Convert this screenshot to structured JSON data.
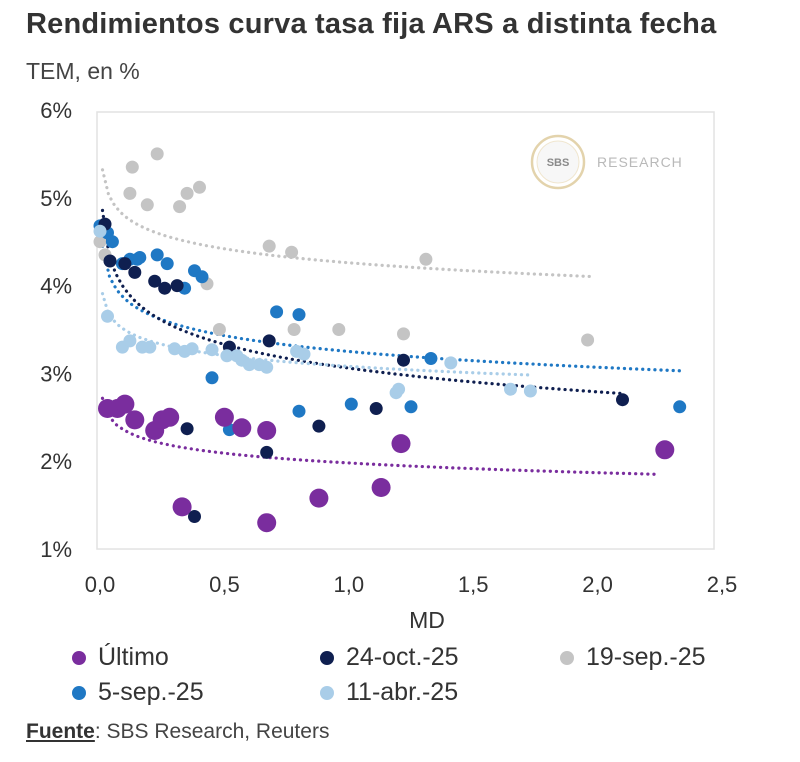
{
  "header": {
    "title": "Rendimientos curva tasa fija ARS a distinta fecha",
    "subtitle": "TEM, en %"
  },
  "watermark": {
    "logo_text": "SBS",
    "brand_text": "RESEARCH"
  },
  "source": {
    "label": "Fuente",
    "text": ": SBS Research, Reuters"
  },
  "chart_data": {
    "type": "scatter",
    "title": "Rendimientos curva tasa fija ARS a distinta fecha",
    "subtitle": "TEM, en %",
    "xlabel": "MD",
    "ylabel": "",
    "xlim": [
      0,
      2.5
    ],
    "ylim": [
      1,
      6
    ],
    "x_ticks": [
      0,
      0.5,
      1.0,
      1.5,
      2.0,
      2.5
    ],
    "x_tick_labels": [
      "0,0",
      "0,5",
      "1,0",
      "1,5",
      "2,0",
      "2,5"
    ],
    "y_ticks": [
      1,
      2,
      3,
      4,
      5,
      6
    ],
    "y_tick_labels": [
      "1%",
      "2%",
      "3%",
      "4%",
      "5%",
      "6%"
    ],
    "legend_position": "bottom",
    "series": [
      {
        "name": "19-sep.-25",
        "color": "#c4c4c4",
        "points": [
          [
            0.0,
            4.5
          ],
          [
            0.02,
            4.35
          ],
          [
            0.13,
            5.35
          ],
          [
            0.12,
            5.05
          ],
          [
            0.19,
            4.92
          ],
          [
            0.23,
            5.5
          ],
          [
            0.32,
            4.9
          ],
          [
            0.35,
            5.05
          ],
          [
            0.4,
            5.12
          ],
          [
            0.43,
            4.02
          ],
          [
            0.48,
            3.5
          ],
          [
            0.68,
            4.45
          ],
          [
            0.77,
            4.38
          ],
          [
            0.78,
            3.5
          ],
          [
            0.96,
            3.5
          ],
          [
            1.22,
            3.45
          ],
          [
            1.31,
            4.3
          ],
          [
            1.96,
            3.38
          ]
        ],
        "trend": {
          "a": 4.26,
          "b": 0.23,
          "x0": 0.01,
          "x1": 1.97
        }
      },
      {
        "name": "5-sep.-25",
        "color": "#1f78c4",
        "points": [
          [
            0.0,
            4.68
          ],
          [
            0.03,
            4.6
          ],
          [
            0.05,
            4.5
          ],
          [
            0.09,
            4.25
          ],
          [
            0.12,
            4.3
          ],
          [
            0.15,
            4.3
          ],
          [
            0.16,
            4.32
          ],
          [
            0.23,
            4.35
          ],
          [
            0.27,
            4.25
          ],
          [
            0.34,
            3.97
          ],
          [
            0.38,
            4.17
          ],
          [
            0.41,
            4.1
          ],
          [
            0.45,
            2.95
          ],
          [
            0.52,
            2.36
          ],
          [
            0.71,
            3.7
          ],
          [
            0.8,
            3.67
          ],
          [
            0.8,
            2.57
          ],
          [
            1.01,
            2.65
          ],
          [
            1.25,
            2.62
          ],
          [
            1.33,
            3.17
          ],
          [
            2.33,
            2.62
          ]
        ],
        "trend": {
          "a": 3.25,
          "b": 0.26,
          "x0": 0.01,
          "x1": 2.33
        }
      },
      {
        "name": "24-oct.-25",
        "color": "#0f1f50",
        "points": [
          [
            0.02,
            4.7
          ],
          [
            0.04,
            4.28
          ],
          [
            0.1,
            4.25
          ],
          [
            0.14,
            4.15
          ],
          [
            0.22,
            4.05
          ],
          [
            0.26,
            3.97
          ],
          [
            0.31,
            4.0
          ],
          [
            0.35,
            2.37
          ],
          [
            0.38,
            1.37
          ],
          [
            0.52,
            3.3
          ],
          [
            0.67,
            2.1
          ],
          [
            0.68,
            3.37
          ],
          [
            0.88,
            2.4
          ],
          [
            1.11,
            2.6
          ],
          [
            1.22,
            3.15
          ],
          [
            2.1,
            2.7
          ]
        ],
        "trend": {
          "a": 3.06,
          "b": 0.39,
          "x0": 0.01,
          "x1": 2.1
        }
      },
      {
        "name": "11-abr.-25",
        "color": "#a9cde8",
        "points": [
          [
            0.0,
            4.62
          ],
          [
            0.03,
            3.65
          ],
          [
            0.09,
            3.3
          ],
          [
            0.12,
            3.37
          ],
          [
            0.17,
            3.3
          ],
          [
            0.2,
            3.3
          ],
          [
            0.3,
            3.28
          ],
          [
            0.34,
            3.25
          ],
          [
            0.37,
            3.28
          ],
          [
            0.45,
            3.27
          ],
          [
            0.51,
            3.2
          ],
          [
            0.55,
            3.2
          ],
          [
            0.57,
            3.15
          ],
          [
            0.6,
            3.1
          ],
          [
            0.64,
            3.1
          ],
          [
            0.67,
            3.07
          ],
          [
            0.79,
            3.25
          ],
          [
            0.82,
            3.22
          ],
          [
            1.19,
            2.78
          ],
          [
            1.2,
            2.82
          ],
          [
            1.41,
            3.12
          ],
          [
            1.65,
            2.82
          ],
          [
            1.73,
            2.8
          ]
        ],
        "trend": {
          "a": 3.08,
          "b": 0.18,
          "x0": 0.01,
          "x1": 1.73
        }
      },
      {
        "name": "Último",
        "color": "#7a2d9e",
        "points": [
          [
            0.03,
            2.6
          ],
          [
            0.07,
            2.6
          ],
          [
            0.1,
            2.65
          ],
          [
            0.14,
            2.47
          ],
          [
            0.22,
            2.35
          ],
          [
            0.25,
            2.47
          ],
          [
            0.28,
            2.5
          ],
          [
            0.33,
            1.48
          ],
          [
            0.5,
            2.5
          ],
          [
            0.57,
            2.38
          ],
          [
            0.67,
            2.35
          ],
          [
            0.67,
            1.3
          ],
          [
            0.88,
            1.58
          ],
          [
            1.13,
            1.7
          ],
          [
            1.21,
            2.2
          ],
          [
            2.27,
            2.13
          ]
        ],
        "trend": {
          "a": 1.98,
          "b": 0.16,
          "x0": 0.01,
          "x1": 2.25
        }
      }
    ]
  },
  "legend": {
    "items": [
      {
        "label": "Último",
        "color": "#7a2d9e"
      },
      {
        "label": "24-oct.-25",
        "color": "#0f1f50"
      },
      {
        "label": "19-sep.-25",
        "color": "#c4c4c4"
      },
      {
        "label": "5-sep.-25",
        "color": "#1f78c4"
      },
      {
        "label": "11-abr.-25",
        "color": "#a9cde8"
      }
    ]
  }
}
